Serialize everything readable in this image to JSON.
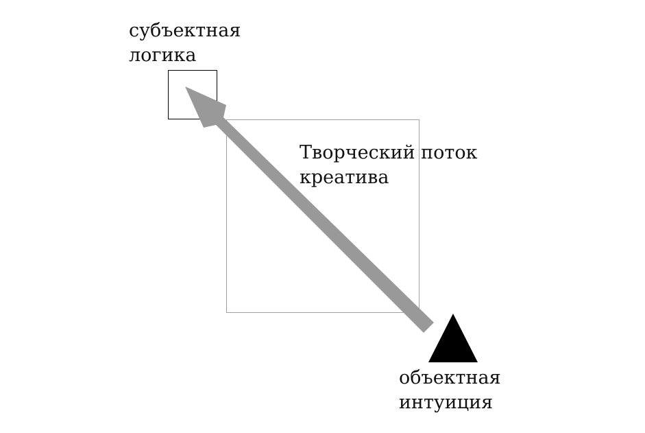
{
  "labels": {
    "subject_logic": {
      "line1": "субъектная",
      "line2": "логика"
    },
    "creative_flow": {
      "line1": "Творческий поток",
      "line2": "креатива"
    },
    "object_intuition": {
      "line1": "объектная",
      "line2": "интуиция"
    }
  },
  "colors": {
    "background": "#ffffff",
    "arrow": "#999999",
    "large_box_stroke": "#a0a0a0",
    "small_box_stroke": "#000000",
    "triangle": "#000000",
    "text": "#111111"
  }
}
